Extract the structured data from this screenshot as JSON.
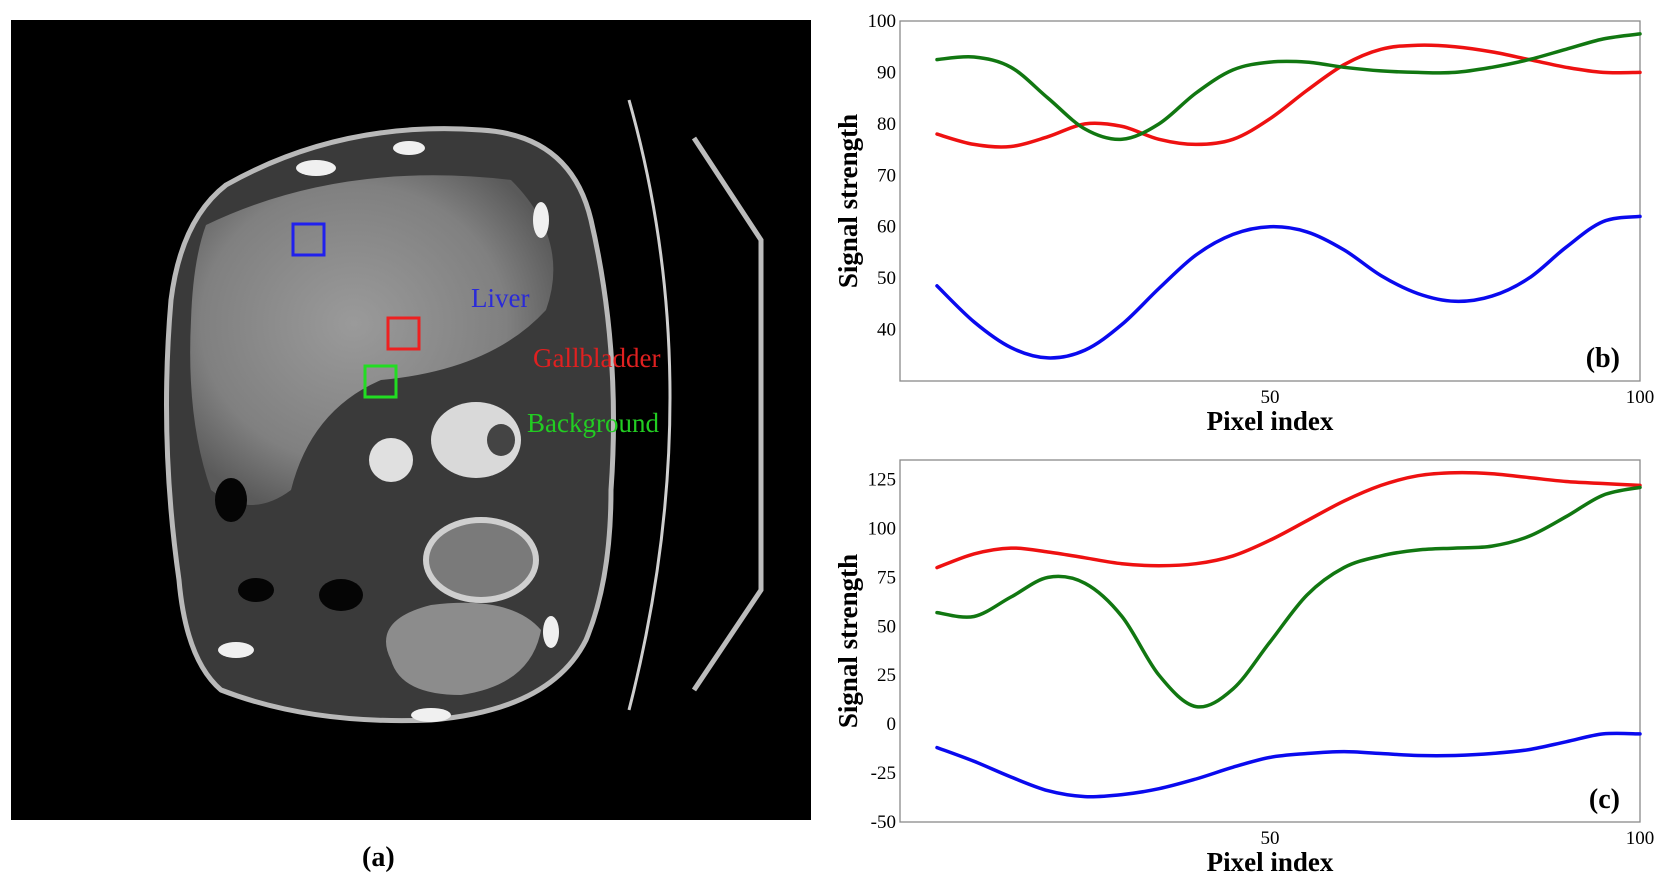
{
  "panel_a": {
    "caption": "(a)",
    "labels": [
      {
        "text": "Liver",
        "color": "#2a2ad8"
      },
      {
        "text": "Gallbladder",
        "color": "#e02020"
      },
      {
        "text": "Background",
        "color": "#22cc22"
      }
    ]
  },
  "colors": {
    "liver": "#0a0aee",
    "gallbladder": "#ee1111",
    "background": "#117711"
  },
  "chart_data": [
    {
      "type": "line",
      "panel_tag": "(b)",
      "xlabel": "Pixel index",
      "ylabel": "Signal strength",
      "xlim": [
        0,
        100
      ],
      "ylim": [
        30,
        100
      ],
      "xticks": [
        "50",
        "100"
      ],
      "yticks": [
        "40",
        "50",
        "60",
        "70",
        "80",
        "90",
        "100"
      ],
      "series": [
        {
          "name": "Gallbladder",
          "color": "#ee1111",
          "x": [
            5,
            10,
            15,
            20,
            25,
            30,
            35,
            40,
            45,
            50,
            55,
            60,
            65,
            70,
            75,
            80,
            85,
            90,
            95,
            100
          ],
          "y": [
            78,
            76,
            75.6,
            77.5,
            80,
            79.5,
            77,
            76,
            77,
            81,
            86.5,
            91.5,
            94.5,
            95.3,
            95,
            94,
            92.5,
            91,
            90,
            90
          ]
        },
        {
          "name": "Background",
          "color": "#117711",
          "x": [
            5,
            10,
            15,
            20,
            25,
            30,
            35,
            40,
            45,
            50,
            55,
            60,
            65,
            70,
            75,
            80,
            85,
            90,
            95,
            100
          ],
          "y": [
            92.5,
            93,
            91,
            85,
            79,
            77,
            80,
            86,
            90.5,
            92,
            92,
            91,
            90.3,
            90,
            90,
            91,
            92.5,
            94.5,
            96.5,
            97.5
          ]
        },
        {
          "name": "Liver",
          "color": "#0a0aee",
          "x": [
            5,
            10,
            15,
            20,
            25,
            30,
            35,
            40,
            45,
            50,
            55,
            60,
            65,
            70,
            75,
            80,
            85,
            90,
            95,
            100
          ],
          "y": [
            48.5,
            41.5,
            36.5,
            34.5,
            36,
            41,
            48,
            54.5,
            58.5,
            60,
            59,
            55.5,
            50.5,
            47,
            45.5,
            46.5,
            50,
            56,
            61,
            62
          ]
        }
      ]
    },
    {
      "type": "line",
      "panel_tag": "(c)",
      "xlabel": "Pixel index",
      "ylabel": "Signal strength",
      "xlim": [
        0,
        100
      ],
      "ylim": [
        -50,
        135
      ],
      "xticks": [
        "50",
        "100"
      ],
      "yticks": [
        "-50",
        "-25",
        "0",
        "25",
        "50",
        "75",
        "100",
        "125"
      ],
      "series": [
        {
          "name": "Gallbladder",
          "color": "#ee1111",
          "x": [
            5,
            10,
            15,
            20,
            25,
            30,
            35,
            40,
            45,
            50,
            55,
            60,
            65,
            70,
            75,
            80,
            85,
            90,
            95,
            100
          ],
          "y": [
            80,
            87,
            90,
            88,
            85,
            82,
            81,
            82,
            86,
            94,
            104,
            114,
            122,
            127,
            128.5,
            128,
            126,
            124,
            123,
            122
          ]
        },
        {
          "name": "Background",
          "color": "#117711",
          "x": [
            5,
            10,
            15,
            20,
            25,
            30,
            35,
            40,
            45,
            50,
            55,
            60,
            65,
            70,
            75,
            80,
            85,
            90,
            95,
            100
          ],
          "y": [
            57,
            55,
            65,
            75,
            72,
            55,
            25,
            9,
            18,
            42,
            66,
            80,
            86,
            89,
            90,
            91,
            96,
            106,
            117,
            121
          ]
        },
        {
          "name": "Liver",
          "color": "#0a0aee",
          "x": [
            5,
            10,
            15,
            20,
            25,
            30,
            35,
            40,
            45,
            50,
            55,
            60,
            65,
            70,
            75,
            80,
            85,
            90,
            95,
            100
          ],
          "y": [
            -12,
            -19,
            -27,
            -34,
            -37,
            -36,
            -33,
            -28,
            -22,
            -17,
            -15,
            -14,
            -15,
            -16,
            -16,
            -15,
            -13,
            -9,
            -5,
            -5
          ]
        }
      ]
    }
  ]
}
